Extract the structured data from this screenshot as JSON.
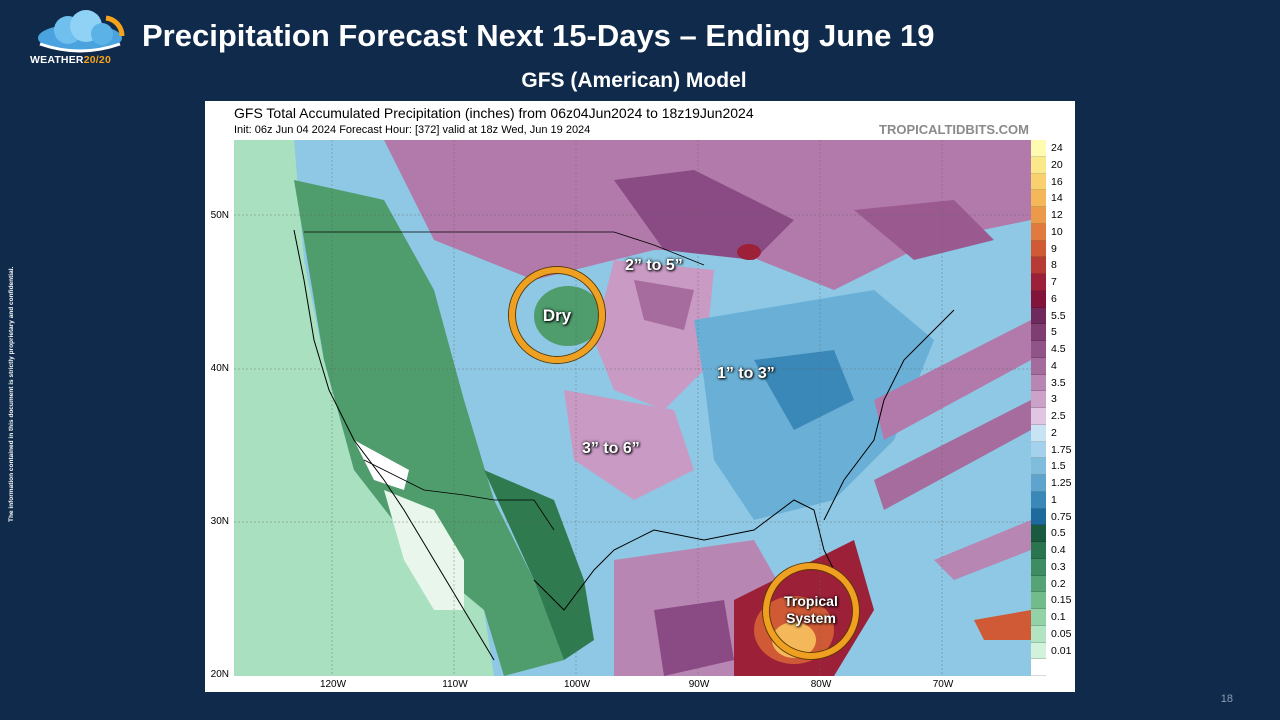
{
  "header": {
    "logo_text_main": "WEATHER",
    "logo_text_accent": "20/20",
    "title": "Precipitation Forecast Next 15-Days – Ending June 19",
    "subtitle": "GFS (American) Model"
  },
  "disclaimer": "The information contained in this document is strictly proprietary and confidential.",
  "page_number": "18",
  "map": {
    "title": "GFS Total Accumulated Precipitation (inches) from 06z04Jun2024 to 18z19Jun2024",
    "init_line": "Init: 06z Jun 04 2024   Forecast Hour: [372]   valid at 18z Wed, Jun 19 2024",
    "source": "TROPICALTIDBITS.COM",
    "lat_labels": [
      "50N",
      "40N",
      "30N",
      "20N"
    ],
    "lon_labels": [
      "120W",
      "110W",
      "100W",
      "90W",
      "80W",
      "70W"
    ]
  },
  "legend": [
    {
      "label": "24",
      "color": "#fffbb0"
    },
    {
      "label": "20",
      "color": "#fbe88a"
    },
    {
      "label": "16",
      "color": "#f8d06e"
    },
    {
      "label": "14",
      "color": "#f4b85a"
    },
    {
      "label": "12",
      "color": "#ec9a4a"
    },
    {
      "label": "10",
      "color": "#e07a3e"
    },
    {
      "label": "9",
      "color": "#d05a36"
    },
    {
      "label": "8",
      "color": "#b83a34"
    },
    {
      "label": "7",
      "color": "#9c2038"
    },
    {
      "label": "6",
      "color": "#82143c"
    },
    {
      "label": "5.5",
      "color": "#6e2a5c"
    },
    {
      "label": "5",
      "color": "#7e3e72"
    },
    {
      "label": "4.5",
      "color": "#905488"
    },
    {
      "label": "4",
      "color": "#a46c9c"
    },
    {
      "label": "3.5",
      "color": "#b886b2"
    },
    {
      "label": "3",
      "color": "#cca2c8"
    },
    {
      "label": "2.5",
      "color": "#e0c6e2"
    },
    {
      "label": "2",
      "color": "#c8e4f4"
    },
    {
      "label": "1.75",
      "color": "#a4d2ec"
    },
    {
      "label": "1.5",
      "color": "#80bcdc"
    },
    {
      "label": "1.25",
      "color": "#5ea4cc"
    },
    {
      "label": "1",
      "color": "#3a88b8"
    },
    {
      "label": "0.75",
      "color": "#1e6a9c"
    },
    {
      "label": "0.5",
      "color": "#1a5a3e"
    },
    {
      "label": "0.4",
      "color": "#2a7450"
    },
    {
      "label": "0.3",
      "color": "#3e8c62"
    },
    {
      "label": "0.2",
      "color": "#56a476"
    },
    {
      "label": "0.15",
      "color": "#72bc8c"
    },
    {
      "label": "0.1",
      "color": "#92d2a6"
    },
    {
      "label": "0.05",
      "color": "#b2e4c2"
    },
    {
      "label": "0.01",
      "color": "#d2f2dc"
    },
    {
      "label": "",
      "color": "#ffffff"
    }
  ],
  "annotations": {
    "dry": "Dry",
    "north_central": "2” to 5”",
    "east": "1” to 3”",
    "south_central": "3” to 6”",
    "tropical_line1": "Tropical",
    "tropical_line2": "System"
  }
}
